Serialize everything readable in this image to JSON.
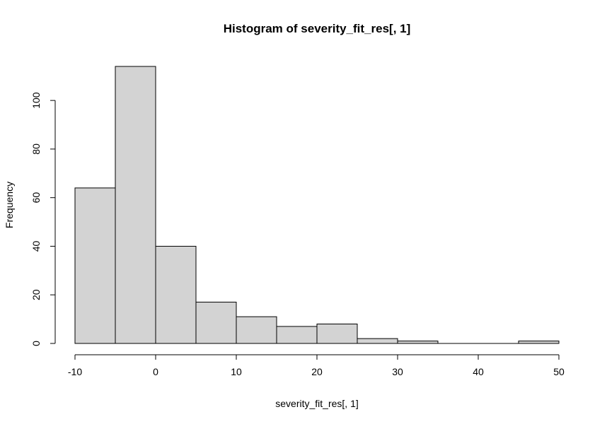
{
  "chart_data": {
    "type": "bar",
    "title": "Histogram of severity_fit_res[, 1]",
    "xlabel": "severity_fit_res[, 1]",
    "ylabel": "Frequency",
    "bin_edges": [
      -10,
      -5,
      0,
      5,
      10,
      15,
      20,
      25,
      30,
      35,
      40,
      45,
      50
    ],
    "values": [
      64,
      114,
      40,
      17,
      11,
      7,
      8,
      2,
      1,
      0,
      0,
      1
    ],
    "xlim": [
      -10,
      50
    ],
    "ylim": [
      0,
      114
    ],
    "x_ticks": [
      -10,
      0,
      10,
      20,
      30,
      40,
      50
    ],
    "y_ticks": [
      0,
      20,
      40,
      60,
      80,
      100
    ],
    "x_tick_labels": [
      "-10",
      "0",
      "10",
      "20",
      "30",
      "40",
      "50"
    ],
    "y_tick_labels": [
      "0",
      "20",
      "40",
      "60",
      "80",
      "100"
    ],
    "grid": false,
    "bar_color": "#d3d3d3",
    "edge_color": "#000000"
  }
}
